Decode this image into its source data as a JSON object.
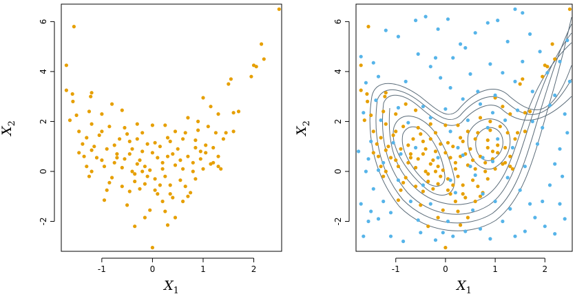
{
  "colors": {
    "orange": "#E69F00",
    "blue": "#56B4E9",
    "contour": "#5a6b78"
  },
  "chart_data": [
    {
      "type": "scatter",
      "xlabel": {
        "base": "X",
        "sub": "1"
      },
      "ylabel": {
        "base": "X",
        "sub": "2"
      },
      "xlim": [
        -1.8,
        2.55
      ],
      "ylim": [
        -3.2,
        6.7
      ],
      "xticks": [
        -1,
        0,
        1,
        2
      ],
      "xtick_labels": [
        "-1",
        "0",
        "1",
        "2"
      ],
      "yticks": [
        -2,
        0,
        2,
        4,
        6
      ],
      "ytick_labels": [
        "-2",
        "0",
        "2",
        "4",
        "6"
      ],
      "series": [
        {
          "color": "#E69F00",
          "points": [
            [
              -1.55,
              5.8
            ],
            [
              -1.7,
              4.25
            ],
            [
              -1.7,
              3.25
            ],
            [
              -1.58,
              3.1
            ],
            [
              -1.57,
              2.8
            ],
            [
              -1.63,
              2.05
            ],
            [
              -1.2,
              3.15
            ],
            [
              -1.22,
              3.0
            ],
            [
              -0.6,
              2.45
            ],
            [
              -0.8,
              2.7
            ],
            [
              -1.0,
              2.3
            ],
            [
              -1.25,
              2.4
            ],
            [
              -1.45,
              1.6
            ],
            [
              -1.38,
              1.1
            ],
            [
              -1.15,
              1.0
            ],
            [
              -1.2,
              0.85
            ],
            [
              -1.35,
              0.6
            ],
            [
              -1.1,
              0.55
            ],
            [
              -1.3,
              0.2
            ],
            [
              -1.25,
              -0.2
            ],
            [
              -1.2,
              0.0
            ],
            [
              -1.0,
              0.45
            ],
            [
              -0.9,
              0.9
            ],
            [
              -0.85,
              1.8
            ],
            [
              -0.75,
              1.05
            ],
            [
              -0.7,
              0.55
            ],
            [
              -0.55,
              0.5
            ],
            [
              -0.5,
              1.5
            ],
            [
              -0.45,
              1.2
            ],
            [
              -0.4,
              0.0
            ],
            [
              -0.35,
              -0.4
            ],
            [
              -0.3,
              0.3
            ],
            [
              -0.25,
              -0.7
            ],
            [
              -0.2,
              0.8
            ],
            [
              -0.15,
              0.2
            ],
            [
              -0.1,
              -0.2
            ],
            [
              -0.05,
              0.05
            ],
            [
              0.0,
              1.85
            ],
            [
              0.0,
              0.75
            ],
            [
              0.05,
              -0.3
            ],
            [
              0.1,
              -0.9
            ],
            [
              0.1,
              0.55
            ],
            [
              0.15,
              1.0
            ],
            [
              0.2,
              0.35
            ],
            [
              0.25,
              -0.2
            ],
            [
              0.3,
              0.6
            ],
            [
              0.35,
              1.2
            ],
            [
              0.35,
              -0.55
            ],
            [
              0.4,
              -1.05
            ],
            [
              0.45,
              0.25
            ],
            [
              0.5,
              0.9
            ],
            [
              0.55,
              -0.35
            ],
            [
              0.6,
              0.1
            ],
            [
              0.65,
              1.55
            ],
            [
              0.7,
              0.6
            ],
            [
              0.75,
              -0.85
            ],
            [
              0.8,
              0.35
            ],
            [
              0.85,
              0.95
            ],
            [
              0.9,
              2.0
            ],
            [
              0.95,
              0.5
            ],
            [
              1.0,
              0.1
            ],
            [
              1.0,
              2.95
            ],
            [
              1.05,
              0.75
            ],
            [
              1.1,
              1.8
            ],
            [
              1.15,
              0.3
            ],
            [
              1.2,
              0.95
            ],
            [
              1.25,
              1.55
            ],
            [
              1.3,
              2.3
            ],
            [
              1.3,
              0.6
            ],
            [
              1.35,
              0.1
            ],
            [
              1.45,
              1.55
            ],
            [
              1.5,
              3.5
            ],
            [
              1.55,
              3.7
            ],
            [
              1.6,
              2.35
            ],
            [
              1.7,
              2.4
            ],
            [
              1.95,
              3.8
            ],
            [
              2.0,
              4.25
            ],
            [
              2.05,
              4.2
            ],
            [
              2.15,
              5.1
            ],
            [
              2.2,
              4.5
            ],
            [
              2.5,
              6.5
            ],
            [
              -0.6,
              -0.6
            ],
            [
              -0.8,
              -0.25
            ],
            [
              -0.9,
              -0.75
            ],
            [
              -0.95,
              -1.15
            ],
            [
              -0.5,
              -1.35
            ],
            [
              -0.45,
              -0.8
            ],
            [
              -0.35,
              -2.2
            ],
            [
              -0.15,
              -1.85
            ],
            [
              -0.05,
              -1.55
            ],
            [
              0.0,
              -3.05
            ],
            [
              0.2,
              -1.2
            ],
            [
              0.25,
              -1.6
            ],
            [
              0.3,
              -2.15
            ],
            [
              0.45,
              -1.85
            ],
            [
              0.6,
              -1.2
            ],
            [
              0.7,
              -1.0
            ],
            [
              0.15,
              -0.55
            ],
            [
              -0.2,
              0.0
            ],
            [
              -0.6,
              0.15
            ],
            [
              -0.75,
              0.35
            ],
            [
              -0.45,
              0.7
            ],
            [
              -0.3,
              1.3
            ],
            [
              -0.55,
              1.75
            ],
            [
              -0.3,
              1.9
            ],
            [
              0.25,
              1.85
            ],
            [
              0.45,
              1.6
            ],
            [
              0.3,
              1.35
            ],
            [
              0.6,
              1.3
            ],
            [
              0.85,
              1.25
            ],
            [
              0.05,
              1.15
            ],
            [
              -0.1,
              1.1
            ],
            [
              -0.65,
              1.3
            ],
            [
              -1.05,
              1.45
            ],
            [
              -1.2,
              1.9
            ],
            [
              -1.3,
              1.35
            ],
            [
              -1.45,
              0.75
            ],
            [
              -0.95,
              0.2
            ],
            [
              1.2,
              0.35
            ],
            [
              1.05,
              1.05
            ],
            [
              0.8,
              0.0
            ],
            [
              0.55,
              0.45
            ],
            [
              0.4,
              0.7
            ],
            [
              0.2,
              0.1
            ],
            [
              -0.25,
              0.45
            ],
            [
              -0.4,
              0.9
            ],
            [
              -0.2,
              1.55
            ],
            [
              0.7,
              2.15
            ],
            [
              0.9,
              1.65
            ],
            [
              1.15,
              2.6
            ],
            [
              1.4,
              1.3
            ],
            [
              -1.5,
              2.25
            ],
            [
              -1.0,
              1.6
            ],
            [
              -0.7,
              0.7
            ],
            [
              0.65,
              -0.6
            ],
            [
              0.35,
              -0.9
            ],
            [
              0.05,
              -0.75
            ],
            [
              -0.15,
              -0.5
            ],
            [
              -0.35,
              -0.1
            ],
            [
              -0.85,
              -0.45
            ],
            [
              0.85,
              -0.3
            ],
            [
              1.3,
              0.2
            ],
            [
              1.6,
              1.6
            ],
            [
              0.95,
              0.8
            ]
          ]
        }
      ]
    },
    {
      "type": "scatter",
      "xlabel": {
        "base": "X",
        "sub": "1"
      },
      "ylabel": {
        "base": "X",
        "sub": "2"
      },
      "xlim": [
        -1.8,
        2.55
      ],
      "ylim": [
        -3.2,
        6.7
      ],
      "xticks": [
        -1,
        0,
        1,
        2
      ],
      "xtick_labels": [
        "-1",
        "0",
        "1",
        "2"
      ],
      "yticks": [
        -2,
        0,
        2,
        4,
        6
      ],
      "ytick_labels": [
        "-2",
        "0",
        "2",
        "4",
        "6"
      ],
      "series": [
        {
          "color": "#E69F00",
          "points_ref": 0
        },
        {
          "color": "#56B4E9",
          "points": [
            [
              -1.7,
              4.6
            ],
            [
              -1.45,
              4.35
            ],
            [
              -1.2,
              5.65
            ],
            [
              -0.95,
              5.4
            ],
            [
              -0.6,
              6.05
            ],
            [
              -0.4,
              6.2
            ],
            [
              -0.15,
              5.7
            ],
            [
              0.05,
              6.1
            ],
            [
              -0.55,
              4.7
            ],
            [
              -0.3,
              4.2
            ],
            [
              -0.1,
              3.75
            ],
            [
              0.3,
              5.1
            ],
            [
              0.4,
              4.95
            ],
            [
              0.6,
              5.55
            ],
            [
              0.85,
              5.95
            ],
            [
              1.05,
              6.05
            ],
            [
              1.25,
              5.2
            ],
            [
              1.4,
              6.5
            ],
            [
              1.55,
              6.35
            ],
            [
              1.7,
              5.5
            ],
            [
              -1.6,
              3.55
            ],
            [
              -1.35,
              3.8
            ],
            [
              -0.8,
              3.6
            ],
            [
              -0.2,
              4.55
            ],
            [
              0.1,
              3.35
            ],
            [
              0.5,
              3.9
            ],
            [
              0.9,
              4.3
            ],
            [
              1.15,
              3.95
            ],
            [
              1.4,
              3.6
            ],
            [
              -1.65,
              2.35
            ],
            [
              -1.5,
              1.2
            ],
            [
              -1.55,
              0.5
            ],
            [
              -1.6,
              0.0
            ],
            [
              -1.35,
              0.05
            ],
            [
              -1.7,
              -1.3
            ],
            [
              -1.5,
              -1.6
            ],
            [
              -1.55,
              -2.0
            ],
            [
              -1.65,
              -2.6
            ],
            [
              -1.35,
              -1.9
            ],
            [
              -1.1,
              -2.6
            ],
            [
              -0.85,
              -2.8
            ],
            [
              -0.5,
              -2.45
            ],
            [
              -0.2,
              -2.75
            ],
            [
              0.15,
              -2.6
            ],
            [
              0.4,
              -2.4
            ],
            [
              0.7,
              -2.3
            ],
            [
              0.9,
              -2.7
            ],
            [
              1.15,
              -2.0
            ],
            [
              1.4,
              -2.6
            ],
            [
              1.6,
              -2.4
            ],
            [
              1.8,
              -1.85
            ],
            [
              2.0,
              -2.2
            ],
            [
              2.2,
              -2.5
            ],
            [
              2.4,
              -1.9
            ],
            [
              2.3,
              -1.3
            ],
            [
              2.1,
              -0.55
            ],
            [
              2.2,
              0.3
            ],
            [
              2.3,
              0.9
            ],
            [
              2.45,
              1.55
            ],
            [
              2.4,
              2.3
            ],
            [
              2.1,
              2.65
            ],
            [
              2.2,
              3.05
            ],
            [
              2.5,
              3.6
            ],
            [
              2.3,
              4.4
            ],
            [
              2.45,
              5.25
            ],
            [
              1.9,
              4.8
            ],
            [
              1.75,
              3.2
            ],
            [
              1.85,
              1.1
            ],
            [
              1.6,
              0.2
            ],
            [
              1.5,
              -0.75
            ],
            [
              1.7,
              -1.3
            ],
            [
              1.3,
              -1.5
            ],
            [
              1.0,
              -1.2
            ],
            [
              0.75,
              -0.9
            ],
            [
              0.5,
              0.2
            ],
            [
              0.35,
              0.65
            ],
            [
              0.85,
              1.75
            ],
            [
              1.05,
              1.3
            ],
            [
              1.2,
              2.05
            ],
            [
              1.35,
              0.95
            ],
            [
              0.6,
              -0.15
            ],
            [
              0.95,
              0.4
            ],
            [
              1.25,
              -0.25
            ],
            [
              0.2,
              -0.85
            ],
            [
              -0.3,
              -1.3
            ],
            [
              -0.7,
              -1.2
            ],
            [
              -0.95,
              -0.35
            ],
            [
              -1.25,
              0.35
            ],
            [
              -1.05,
              1.15
            ],
            [
              -0.75,
              1.95
            ],
            [
              -0.3,
              2.15
            ],
            [
              0.1,
              1.6
            ],
            [
              0.45,
              2.05
            ],
            [
              0.7,
              2.7
            ],
            [
              0.95,
              2.35
            ],
            [
              1.45,
              2.45
            ],
            [
              -1.4,
              2.85
            ],
            [
              -0.95,
              2.55
            ],
            [
              -0.45,
              2.6
            ],
            [
              0.0,
              2.5
            ],
            [
              0.35,
              2.9
            ],
            [
              0.65,
              3.2
            ],
            [
              1.0,
              3.05
            ],
            [
              -1.1,
              -1.65
            ],
            [
              -0.55,
              -1.95
            ],
            [
              0.05,
              -2.0
            ],
            [
              0.55,
              -1.55
            ],
            [
              -1.45,
              -0.7
            ],
            [
              -1.25,
              -1.2
            ],
            [
              0.25,
              0.95
            ],
            [
              -0.15,
              0.55
            ],
            [
              -0.6,
              0.95
            ],
            [
              -0.9,
              0.7
            ],
            [
              -0.45,
              -0.55
            ],
            [
              0.1,
              -0.35
            ],
            [
              0.75,
              0.55
            ],
            [
              1.75,
              2.0
            ],
            [
              2.35,
              -0.2
            ],
            [
              1.95,
              1.75
            ],
            [
              -1.75,
              0.8
            ],
            [
              -1.3,
              2.05
            ],
            [
              0.15,
              4.55
            ],
            [
              1.55,
              4.4
            ],
            [
              2.05,
              3.95
            ],
            [
              -0.05,
              -2.45
            ],
            [
              1.95,
              -1.2
            ]
          ]
        }
      ],
      "contours": true
    }
  ]
}
